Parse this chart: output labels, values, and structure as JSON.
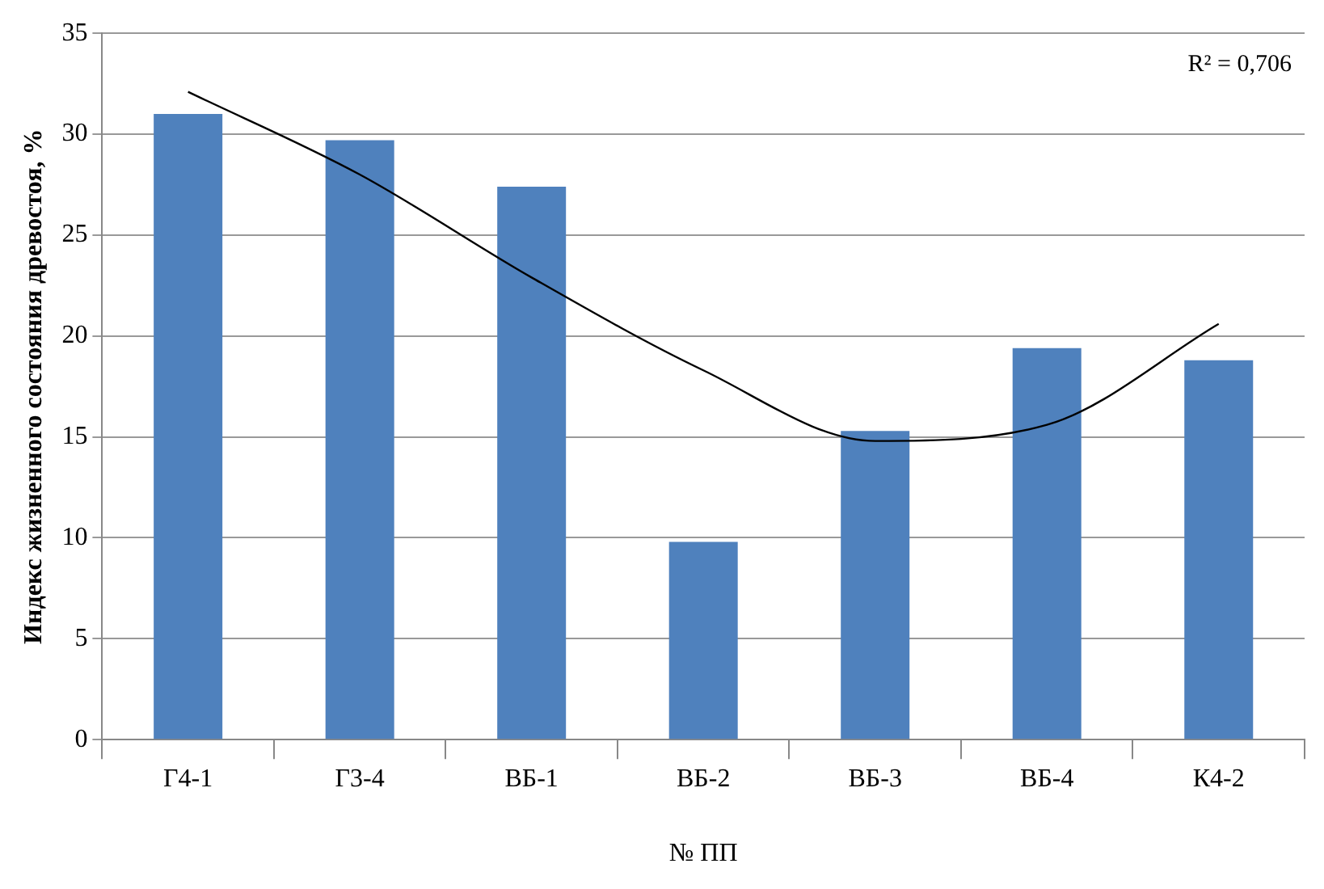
{
  "chart_data": {
    "type": "bar",
    "xlabel": "№ ПП",
    "ylabel": "Индекс жизненного состояния древостоя, %",
    "categories": [
      "Г4-1",
      "Г3-4",
      "ВБ-1",
      "ВБ-2",
      "ВБ-3",
      "ВБ-4",
      "К4-2"
    ],
    "series": [
      {
        "color": "#4f81bd",
        "values": [
          31,
          29.7,
          27.4,
          9.8,
          15.3,
          19.4,
          18.8
        ]
      },
      {
        "type": "line",
        "color": "#000000",
        "marker": "none",
        "values": [
          32.1,
          28,
          22.9,
          18.3,
          14.8,
          15.6,
          20.6
        ]
      }
    ],
    "ylim": [
      0,
      35
    ],
    "yticks": [
      0,
      5,
      10,
      15,
      20,
      25,
      30,
      35
    ],
    "grid": "y",
    "legend": false,
    "annotations": [
      "R² = 0,706"
    ]
  }
}
